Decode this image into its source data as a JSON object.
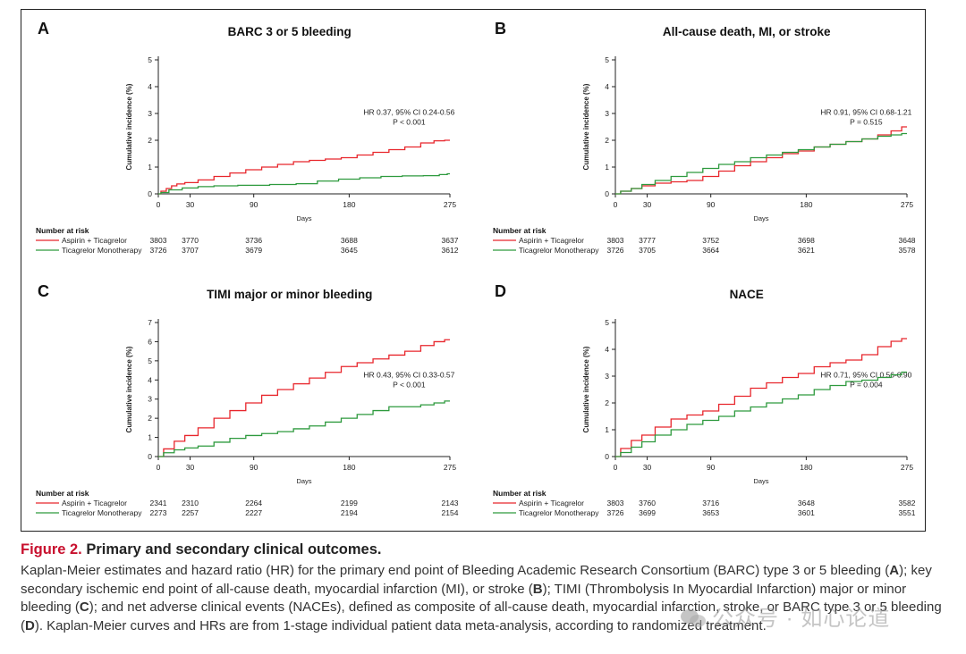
{
  "caption": {
    "label": "Figure 2.",
    "title": "Primary and secondary clinical outcomes.",
    "body_parts": [
      "Kaplan-Meier estimates and hazard ratio (HR) for the primary end point of Bleeding Academic Research Consortium (BARC) type 3 or 5 bleeding (",
      "A",
      "); key secondary ischemic end point of all-cause death, myocardial infarction (MI), or stroke (",
      "B",
      "); TIMI (Thrombolysis In Myocardial Infarction) major or minor bleeding (",
      "C",
      "); and net adverse clinical events (NACEs), defined as composite of all-cause death, myocardial infarction, stroke, or BARC type 3 or 5 bleeding (",
      "D",
      "). Kaplan-Meier curves and HRs are from 1-stage individual patient data meta-analysis, according to randomized treatment."
    ]
  },
  "watermark": {
    "text": "公众号 · 如心论道"
  },
  "colors": {
    "aspirin": "#e8262c",
    "mono": "#2e9a3e",
    "axis": "#222222"
  },
  "chart_data": [
    {
      "type": "line",
      "panel": "A",
      "title": "BARC 3 or 5 bleeding",
      "xlabel": "Days",
      "ylabel": "Cumulative incidence (%)",
      "xlim": [
        0,
        275
      ],
      "ylim": [
        0,
        5
      ],
      "xticks": [
        0,
        30,
        90,
        180,
        275
      ],
      "yticks": [
        0,
        1,
        2,
        3,
        4,
        5
      ],
      "hr_text": "HR 0.37, 95% CI 0.24-0.56",
      "p_text": "P < 0.001",
      "risk_header": "Number at risk",
      "series": [
        {
          "name": "Aspirin + Ticagrelor",
          "color": "#e8262c",
          "x": [
            0,
            5,
            10,
            15,
            20,
            30,
            45,
            60,
            75,
            90,
            105,
            120,
            135,
            150,
            165,
            180,
            195,
            210,
            225,
            240,
            255,
            265,
            275
          ],
          "y": [
            0,
            0.1,
            0.2,
            0.3,
            0.37,
            0.42,
            0.52,
            0.65,
            0.78,
            0.9,
            1.0,
            1.1,
            1.2,
            1.25,
            1.3,
            1.35,
            1.45,
            1.55,
            1.65,
            1.75,
            1.9,
            1.98,
            2.0
          ],
          "at_risk": [
            3803,
            3770,
            3736,
            3688,
            3637
          ]
        },
        {
          "name": "Ticagrelor Monotherapy",
          "color": "#2e9a3e",
          "x": [
            0,
            5,
            15,
            30,
            45,
            60,
            90,
            120,
            140,
            160,
            180,
            200,
            220,
            240,
            260,
            270,
            275
          ],
          "y": [
            0,
            0.05,
            0.15,
            0.22,
            0.27,
            0.3,
            0.32,
            0.35,
            0.38,
            0.48,
            0.55,
            0.6,
            0.65,
            0.67,
            0.68,
            0.72,
            0.75
          ],
          "at_risk": [
            3726,
            3707,
            3679,
            3645,
            3612
          ]
        }
      ]
    },
    {
      "type": "line",
      "panel": "B",
      "title": "All-cause death, MI, or stroke",
      "xlabel": "Days",
      "ylabel": "Cumulative incidence (%)",
      "xlim": [
        0,
        275
      ],
      "ylim": [
        0,
        5
      ],
      "xticks": [
        0,
        30,
        90,
        180,
        275
      ],
      "yticks": [
        0,
        1,
        2,
        3,
        4,
        5
      ],
      "hr_text": "HR 0.91, 95% CI 0.68-1.21",
      "p_text": "P = 0.515",
      "risk_header": "Number at risk",
      "series": [
        {
          "name": "Aspirin + Ticagrelor",
          "color": "#e8262c",
          "x": [
            0,
            10,
            20,
            30,
            45,
            60,
            75,
            90,
            105,
            120,
            135,
            150,
            165,
            180,
            195,
            210,
            225,
            240,
            255,
            265,
            275
          ],
          "y": [
            0,
            0.1,
            0.2,
            0.3,
            0.4,
            0.45,
            0.5,
            0.65,
            0.85,
            1.05,
            1.2,
            1.35,
            1.5,
            1.6,
            1.75,
            1.85,
            1.95,
            2.05,
            2.2,
            2.35,
            2.5
          ],
          "at_risk": [
            3803,
            3777,
            3752,
            3698,
            3648
          ]
        },
        {
          "name": "Ticagrelor Monotherapy",
          "color": "#2e9a3e",
          "x": [
            0,
            10,
            20,
            30,
            45,
            60,
            75,
            90,
            105,
            120,
            135,
            150,
            165,
            180,
            195,
            210,
            225,
            240,
            255,
            265,
            275
          ],
          "y": [
            0,
            0.1,
            0.2,
            0.35,
            0.5,
            0.65,
            0.8,
            0.95,
            1.1,
            1.2,
            1.35,
            1.45,
            1.55,
            1.65,
            1.75,
            1.85,
            1.95,
            2.05,
            2.15,
            2.2,
            2.25
          ],
          "at_risk": [
            3726,
            3705,
            3664,
            3621,
            3578
          ]
        }
      ]
    },
    {
      "type": "line",
      "panel": "C",
      "title": "TIMI major or minor bleeding",
      "xlabel": "Days",
      "ylabel": "Cumulative incidence (%)",
      "xlim": [
        0,
        275
      ],
      "ylim": [
        0,
        7
      ],
      "xticks": [
        0,
        30,
        90,
        180,
        275
      ],
      "yticks": [
        0,
        1,
        2,
        3,
        4,
        5,
        6,
        7
      ],
      "hr_text": "HR 0.43, 95% CI 0.33-0.57",
      "p_text": "P < 0.001",
      "risk_header": "Number at risk",
      "series": [
        {
          "name": "Aspirin + Ticagrelor",
          "color": "#e8262c",
          "x": [
            0,
            10,
            20,
            30,
            45,
            60,
            75,
            90,
            105,
            120,
            135,
            150,
            165,
            180,
            195,
            210,
            225,
            240,
            255,
            265,
            275
          ],
          "y": [
            0,
            0.4,
            0.8,
            1.1,
            1.5,
            2.0,
            2.4,
            2.8,
            3.2,
            3.5,
            3.8,
            4.1,
            4.4,
            4.7,
            4.9,
            5.1,
            5.3,
            5.5,
            5.8,
            6.0,
            6.1
          ],
          "at_risk": [
            2341,
            2310,
            2264,
            2199,
            2143
          ]
        },
        {
          "name": "Ticagrelor Monotherapy",
          "color": "#2e9a3e",
          "x": [
            0,
            10,
            20,
            30,
            45,
            60,
            75,
            90,
            105,
            120,
            135,
            150,
            165,
            180,
            195,
            210,
            225,
            240,
            255,
            265,
            275
          ],
          "y": [
            0,
            0.2,
            0.35,
            0.45,
            0.55,
            0.75,
            0.95,
            1.1,
            1.2,
            1.3,
            1.45,
            1.6,
            1.8,
            2.0,
            2.2,
            2.4,
            2.6,
            2.6,
            2.7,
            2.8,
            2.9
          ],
          "at_risk": [
            2273,
            2257,
            2227,
            2194,
            2154
          ]
        }
      ]
    },
    {
      "type": "line",
      "panel": "D",
      "title": "NACE",
      "xlabel": "Days",
      "ylabel": "Cumulative incidence (%)",
      "xlim": [
        0,
        275
      ],
      "ylim": [
        0,
        5
      ],
      "xticks": [
        0,
        30,
        90,
        180,
        275
      ],
      "yticks": [
        0,
        1,
        2,
        3,
        4,
        5
      ],
      "hr_text": "HR 0.71, 95% CI 0.56-0.90",
      "p_text": "P = 0.004",
      "risk_header": "Number at risk",
      "series": [
        {
          "name": "Aspirin + Ticagrelor",
          "color": "#e8262c",
          "x": [
            0,
            10,
            20,
            30,
            45,
            60,
            75,
            90,
            105,
            120,
            135,
            150,
            165,
            180,
            195,
            210,
            225,
            240,
            255,
            265,
            275
          ],
          "y": [
            0,
            0.3,
            0.6,
            0.8,
            1.1,
            1.4,
            1.55,
            1.7,
            1.95,
            2.25,
            2.55,
            2.75,
            2.95,
            3.1,
            3.35,
            3.5,
            3.6,
            3.8,
            4.1,
            4.3,
            4.4
          ],
          "at_risk": [
            3803,
            3760,
            3716,
            3648,
            3582
          ]
        },
        {
          "name": "Ticagrelor Monotherapy",
          "color": "#2e9a3e",
          "x": [
            0,
            10,
            20,
            30,
            45,
            60,
            75,
            90,
            105,
            120,
            135,
            150,
            165,
            180,
            195,
            210,
            225,
            240,
            255,
            265,
            275
          ],
          "y": [
            0,
            0.15,
            0.35,
            0.55,
            0.8,
            1.0,
            1.2,
            1.35,
            1.5,
            1.7,
            1.85,
            2.0,
            2.15,
            2.3,
            2.5,
            2.65,
            2.8,
            2.85,
            2.95,
            3.05,
            3.15
          ],
          "at_risk": [
            3726,
            3699,
            3653,
            3601,
            3551
          ]
        }
      ]
    }
  ]
}
